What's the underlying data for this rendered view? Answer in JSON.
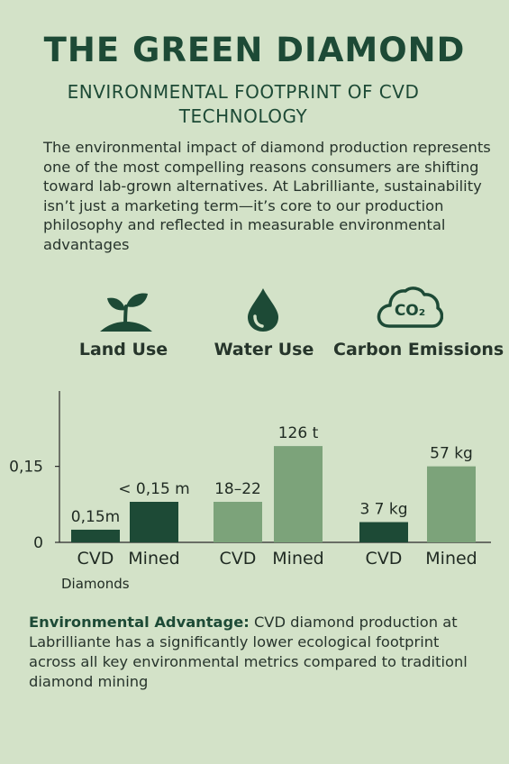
{
  "header": {
    "title": "THE GREEN DIAMOND",
    "subtitle": "ENVIRONMENTAL FOOTPRINT OF CVD TECHNOLOGY"
  },
  "intro": "The environmental impact of diamond production represents one of the most compelling reasons consumers are shifting toward lab-grown alternatives. At Labrilliante, sustainability isn’t just a marketing term—it’s core to our production philosophy and reflected in measurable environmental advantages",
  "metrics": [
    {
      "label": "Land Use",
      "icon": "sprout-icon"
    },
    {
      "label": "Water Use",
      "icon": "water-drop-icon"
    },
    {
      "label": "Carbon Emissions",
      "icon": "co2-cloud-icon",
      "icon_text": "CO₂"
    }
  ],
  "colors": {
    "background": "#d3e2c8",
    "dark_green": "#1d4a36",
    "light_green": "#7ca37a"
  },
  "chart_data": {
    "type": "bar",
    "ylim": [
      0,
      0.32
    ],
    "yticks": [
      {
        "value": 0,
        "label": "0"
      },
      {
        "value": 0.15,
        "label": "0,15"
      }
    ],
    "axis_note": "Diamonds",
    "groups": [
      {
        "metric": "Land Use",
        "bars": [
          {
            "category": "CVD",
            "value": 0.025,
            "label": "0,15m",
            "shade": "dark"
          },
          {
            "category": "Mined",
            "value": 0.08,
            "label": "< 0,15 m",
            "shade": "dark"
          }
        ]
      },
      {
        "metric": "Water Use",
        "bars": [
          {
            "category": "CVD",
            "value": 0.08,
            "label": "18–22",
            "shade": "light"
          },
          {
            "category": "Mined",
            "value": 0.19,
            "label": "126 t",
            "shade": "light"
          }
        ]
      },
      {
        "metric": "Carbon Emissions",
        "bars": [
          {
            "category": "CVD",
            "value": 0.04,
            "label": "3 7 kg",
            "shade": "dark"
          },
          {
            "category": "Mined",
            "value": 0.15,
            "label": "57 kg",
            "shade": "light"
          }
        ]
      }
    ]
  },
  "footer": {
    "lead": "Environmental Advantage:",
    "text": " CVD diamond production at Labrilliante has a significantly lower ecological footprint across all key environmental metrics compared to traditionl diamond mining"
  }
}
